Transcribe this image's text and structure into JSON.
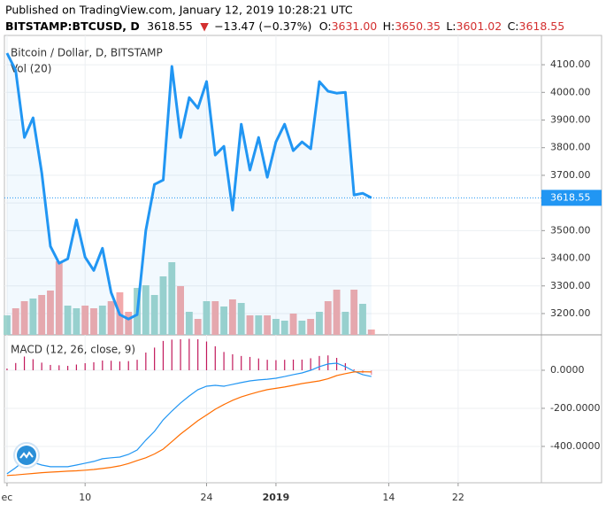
{
  "header": {
    "published": "Published on TradingView.com, January 12, 2019 10:28:21 UTC",
    "symbol": "BITSTAMP:BTCUSD, D",
    "price": "3618.55",
    "arrow": "▼",
    "change": "−13.47 (−0.37%)",
    "o_label": "O:",
    "o": "3631.00",
    "h_label": "H:",
    "h": "3650.35",
    "l_label": "L:",
    "l": "3601.02",
    "c_label": "C:",
    "c": "3618.55"
  },
  "chart_data": [
    {
      "type": "line",
      "title": "Bitcoin / Dollar, D, BITSTAMP",
      "x": [
        0,
        1,
        2,
        3,
        4,
        5,
        6,
        7,
        8,
        9,
        10,
        11,
        12,
        13,
        14,
        15,
        16,
        17,
        18,
        19,
        20,
        21,
        22,
        23,
        24,
        25,
        26,
        27,
        28,
        29,
        30,
        31,
        32,
        33,
        34,
        35,
        36,
        37,
        38,
        39,
        40,
        41,
        42
      ],
      "xlim": [
        -0.3,
        61.6
      ],
      "color": "#2196f3",
      "values": [
        4142,
        4080,
        3837,
        3908,
        3709,
        3443,
        3382,
        3398,
        3539,
        3404,
        3356,
        3436,
        3276,
        3196,
        3180,
        3196,
        3500,
        3667,
        3683,
        4094,
        3837,
        3981,
        3943,
        4039,
        3773,
        3805,
        3574,
        3885,
        3719,
        3837,
        3693,
        3821,
        3885,
        3789,
        3821,
        3796,
        4039,
        4004,
        3997,
        4000,
        3629,
        3635,
        3618.55
      ],
      "ylim": [
        3123,
        4206
      ],
      "yticks": [
        {
          "value": 3200,
          "label": "3200.00"
        },
        {
          "value": 3300,
          "label": "3300.00"
        },
        {
          "value": 3400,
          "label": "3400.00"
        },
        {
          "value": 3500,
          "label": "3500.00"
        },
        {
          "value": 3600,
          "label": "3600.00"
        },
        {
          "value": 3700,
          "label": "3700.00"
        },
        {
          "value": 3800,
          "label": "3800.00"
        },
        {
          "value": 3900,
          "label": "3900.00"
        },
        {
          "value": 4000,
          "label": "4000.00"
        },
        {
          "value": 4100,
          "label": "4100.00"
        }
      ],
      "grid": true,
      "volume": {
        "label": "Vol (20)",
        "lim": [
          0,
          338
        ],
        "up_color": "#9fd4cd",
        "down_color": "#f2a9ab",
        "values": [
          22,
          30,
          38,
          41,
          45,
          50,
          83,
          33,
          30,
          33,
          30,
          33,
          38,
          48,
          26,
          53,
          56,
          45,
          66,
          82,
          55,
          26,
          18,
          38,
          38,
          32,
          40,
          36,
          22,
          22,
          22,
          18,
          16,
          24,
          16,
          18,
          26,
          38,
          51,
          26,
          51,
          35,
          6
        ]
      }
    },
    {
      "type": "macd",
      "title": "MACD (12, 26, close, 9)",
      "x": [
        0,
        1,
        2,
        3,
        4,
        5,
        6,
        7,
        8,
        9,
        10,
        11,
        12,
        13,
        14,
        15,
        16,
        17,
        18,
        19,
        20,
        21,
        22,
        23,
        24,
        25,
        26,
        27,
        28,
        29,
        30,
        31,
        32,
        33,
        34,
        35,
        36,
        37,
        38,
        39,
        40,
        41,
        42
      ],
      "xlim": [
        -0.3,
        61.6
      ],
      "xticks": [
        {
          "value": 0,
          "label": "ec"
        },
        {
          "value": 9,
          "label": "10"
        },
        {
          "value": 23,
          "label": "24"
        },
        {
          "value": 31,
          "label": "2019"
        },
        {
          "value": 44,
          "label": "14"
        },
        {
          "value": 52,
          "label": "22"
        }
      ],
      "ylim": [
        -591,
        186
      ],
      "yticks": [
        {
          "value": -400,
          "label": "-400.0000"
        },
        {
          "value": -200,
          "label": "-200.0000"
        },
        {
          "value": 0,
          "label": "0.0000"
        }
      ],
      "grid": true,
      "series": [
        {
          "color": "#2196f3",
          "values": [
            -544,
            -512,
            -474,
            -484,
            -498,
            -507,
            -507,
            -507,
            -498,
            -488,
            -479,
            -465,
            -460,
            -456,
            -442,
            -419,
            -367,
            -321,
            -260,
            -214,
            -172,
            -135,
            -102,
            -84,
            -79,
            -84,
            -74,
            -65,
            -56,
            -51,
            -47,
            -42,
            -33,
            -23,
            -14,
            0,
            19,
            33,
            37,
            19,
            -5,
            -23,
            -33
          ]
        },
        {
          "color": "#ff6d00",
          "values": [
            -553,
            -550,
            -546,
            -542,
            -538,
            -535,
            -533,
            -530,
            -528,
            -525,
            -521,
            -516,
            -510,
            -502,
            -490,
            -474,
            -460,
            -440,
            -414,
            -375,
            -335,
            -300,
            -265,
            -235,
            -205,
            -180,
            -158,
            -140,
            -126,
            -113,
            -102,
            -95,
            -88,
            -79,
            -70,
            -63,
            -56,
            -45,
            -28,
            -18,
            -9,
            -8,
            -9
          ]
        }
      ],
      "histogram": {
        "color": "#c2185b",
        "values": [
          9,
          38,
          72,
          58,
          40,
          28,
          26,
          23,
          30,
          37,
          42,
          51,
          50,
          46,
          48,
          55,
          93,
          119,
          154,
          161,
          163,
          165,
          163,
          151,
          126,
          96,
          84,
          75,
          70,
          62,
          55,
          53,
          55,
          56,
          56,
          63,
          75,
          78,
          65,
          37,
          4,
          -15,
          -24
        ]
      }
    }
  ]
}
